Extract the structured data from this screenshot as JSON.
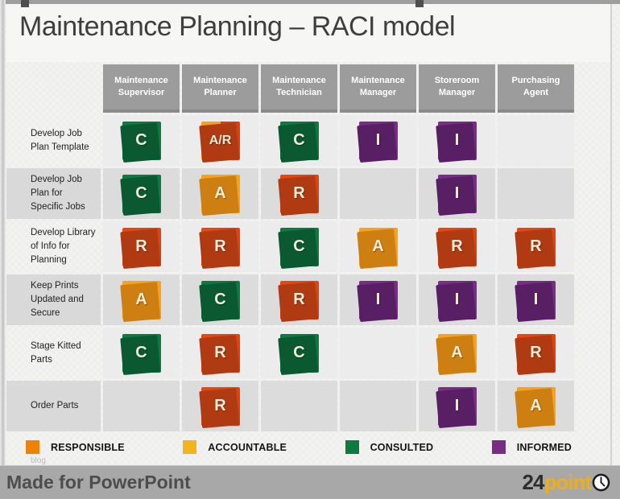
{
  "title": "Maintenance Planning – RACI model",
  "matrix": {
    "columns": [
      "Maintenance Supervisor",
      "Maintenance Planner",
      "Maintenance Technician",
      "Maintenance Manager",
      "Storeroom Manager",
      "Purchasing Agent"
    ],
    "rows": [
      {
        "label": "Develop Job Plan Template",
        "cells": [
          "C",
          "A/R",
          "C",
          "I",
          "I",
          ""
        ]
      },
      {
        "label": "Develop Job Plan for Specific Jobs",
        "cells": [
          "C",
          "A",
          "R",
          "",
          "I",
          ""
        ]
      },
      {
        "label": "Develop Library of Info for Planning",
        "cells": [
          "R",
          "R",
          "C",
          "A",
          "R",
          "R"
        ]
      },
      {
        "label": "Keep Prints Updated and Secure",
        "cells": [
          "A",
          "C",
          "R",
          "I",
          "I",
          "I"
        ]
      },
      {
        "label": "Stage  Kitted Parts",
        "cells": [
          "C",
          "R",
          "C",
          "",
          "A",
          "R"
        ]
      },
      {
        "label": "Order Parts",
        "cells": [
          "",
          "R",
          "",
          "",
          "I",
          "A"
        ]
      }
    ]
  },
  "box_colors": {
    "R": "#e0420f",
    "A": "#f6a21c",
    "C": "#0d7a40",
    "I": "#7a2c86"
  },
  "legend": [
    {
      "label": "RESPONSIBLE",
      "color": "#ee8207"
    },
    {
      "label": "ACCOUNTABLE",
      "color": "#f2b31d"
    },
    {
      "label": "CONSULTED",
      "color": "#0d7a40"
    },
    {
      "label": "INFORMED",
      "color": "#7a2c86"
    }
  ],
  "watermark": "blog",
  "footer": {
    "made_for": "Made for PowerPoint",
    "brand_prefix": "24",
    "brand_suffix": "point",
    "brand_icon": "clock-icon"
  }
}
